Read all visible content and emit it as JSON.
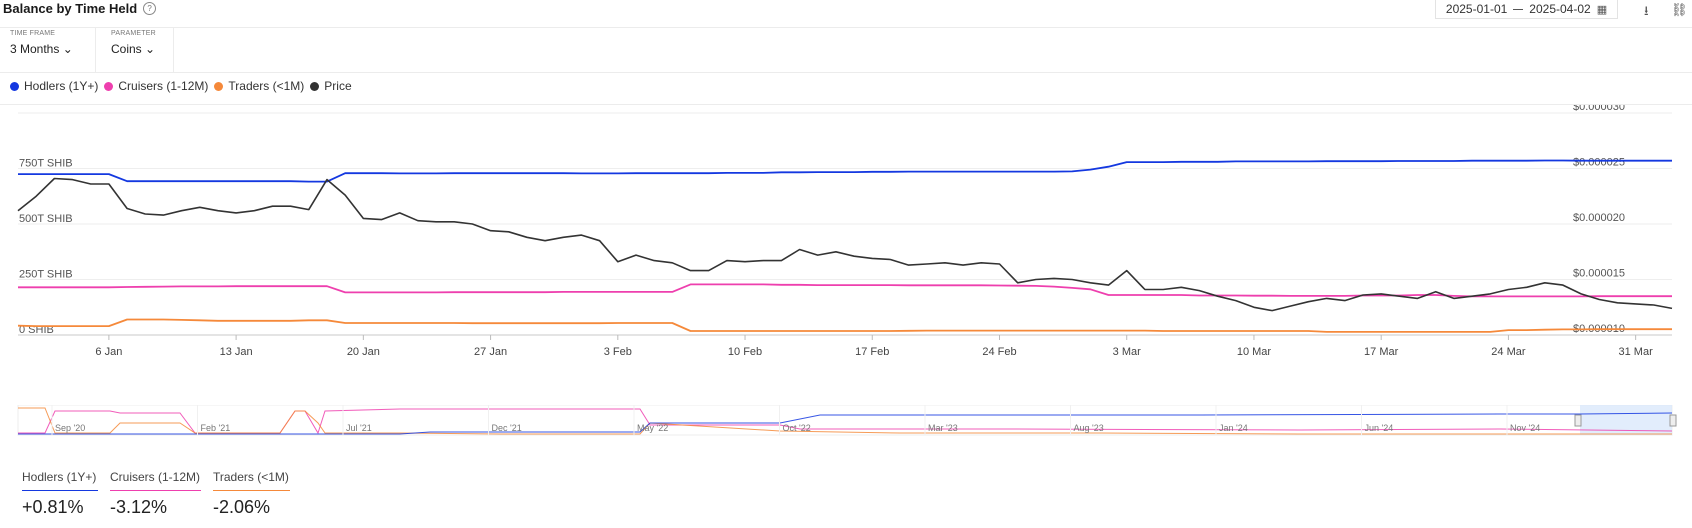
{
  "header": {
    "title": "Balance by Time Held",
    "date_from": "2025-01-01",
    "date_to": "2025-04-02"
  },
  "controls": {
    "timeframe": {
      "label": "TIME FRAME",
      "value": "3 Months"
    },
    "parameter": {
      "label": "PARAMETER",
      "value": "Coins"
    }
  },
  "colors": {
    "hodlers": "#1438e0",
    "cruisers": "#ee3fae",
    "traders": "#f5893a",
    "price": "#333333"
  },
  "chart_data": {
    "type": "line",
    "title": "Balance by Time Held",
    "x": [
      "2025-01-01",
      "2025-01-02",
      "2025-01-03",
      "2025-01-04",
      "2025-01-05",
      "2025-01-06",
      "2025-01-07",
      "2025-01-08",
      "2025-01-09",
      "2025-01-10",
      "2025-01-11",
      "2025-01-12",
      "2025-01-13",
      "2025-01-14",
      "2025-01-15",
      "2025-01-16",
      "2025-01-17",
      "2025-01-18",
      "2025-01-19",
      "2025-01-20",
      "2025-01-21",
      "2025-01-22",
      "2025-01-23",
      "2025-01-24",
      "2025-01-25",
      "2025-01-26",
      "2025-01-27",
      "2025-01-28",
      "2025-01-29",
      "2025-01-30",
      "2025-01-31",
      "2025-02-01",
      "2025-02-02",
      "2025-02-03",
      "2025-02-04",
      "2025-02-05",
      "2025-02-06",
      "2025-02-07",
      "2025-02-08",
      "2025-02-09",
      "2025-02-10",
      "2025-02-11",
      "2025-02-12",
      "2025-02-13",
      "2025-02-14",
      "2025-02-15",
      "2025-02-16",
      "2025-02-17",
      "2025-02-18",
      "2025-02-19",
      "2025-02-20",
      "2025-02-21",
      "2025-02-22",
      "2025-02-23",
      "2025-02-24",
      "2025-02-25",
      "2025-02-26",
      "2025-02-27",
      "2025-02-28",
      "2025-03-01",
      "2025-03-02",
      "2025-03-03",
      "2025-03-04",
      "2025-03-05",
      "2025-03-06",
      "2025-03-07",
      "2025-03-08",
      "2025-03-09",
      "2025-03-10",
      "2025-03-11",
      "2025-03-12",
      "2025-03-13",
      "2025-03-14",
      "2025-03-15",
      "2025-03-16",
      "2025-03-17",
      "2025-03-18",
      "2025-03-19",
      "2025-03-20",
      "2025-03-21",
      "2025-03-22",
      "2025-03-23",
      "2025-03-24",
      "2025-03-25",
      "2025-03-26",
      "2025-03-27",
      "2025-03-28",
      "2025-03-29",
      "2025-03-30",
      "2025-03-31",
      "2025-04-01",
      "2025-04-02"
    ],
    "x_ticks": [
      "6 Jan",
      "13 Jan",
      "20 Jan",
      "27 Jan",
      "3 Feb",
      "10 Feb",
      "17 Feb",
      "24 Feb",
      "3 Mar",
      "10 Mar",
      "17 Mar",
      "24 Mar",
      "31 Mar"
    ],
    "y_left": {
      "ticks": [
        "0 SHIB",
        "250T SHIB",
        "500T SHIB",
        "750T SHIB"
      ],
      "unit": "SHIB",
      "min": 0,
      "max": 1000,
      "scale": "T"
    },
    "y_right": {
      "ticks": [
        "$0.000010",
        "$0.000015",
        "$0.000020",
        "$0.000025",
        "$0.000030"
      ],
      "min": 1e-05,
      "max": 3e-05
    },
    "series": [
      {
        "name": "Hodlers (1Y+)",
        "axis": "left",
        "values": [
          725,
          725,
          725,
          725,
          725,
          725,
          693,
          693,
          693,
          693,
          693,
          693,
          693,
          693,
          693,
          693,
          691,
          691,
          729,
          729,
          729,
          728,
          728,
          728,
          729,
          729,
          729,
          729,
          729,
          729,
          729,
          728,
          728,
          728,
          729,
          729,
          729,
          729,
          729,
          730,
          730,
          730,
          733,
          733,
          734,
          734,
          734,
          735,
          735,
          736,
          736,
          736,
          736,
          736,
          736,
          736,
          736,
          736,
          737,
          745,
          758,
          779,
          779,
          779,
          780,
          780,
          780,
          782,
          782,
          782,
          782,
          782,
          783,
          783,
          783,
          783,
          784,
          784,
          784,
          784,
          785,
          785,
          785,
          785,
          786,
          786,
          785,
          785,
          785,
          785,
          785,
          785
        ]
      },
      {
        "name": "Cruisers (1-12M)",
        "axis": "left",
        "values": [
          215,
          215,
          215,
          215,
          215,
          215,
          216,
          217,
          218,
          219,
          219,
          219,
          220,
          220,
          220,
          220,
          220,
          220,
          192,
          192,
          192,
          192,
          192,
          192,
          193,
          193,
          193,
          193,
          193,
          193,
          194,
          194,
          194,
          194,
          194,
          194,
          194,
          228,
          228,
          228,
          228,
          228,
          226,
          226,
          225,
          225,
          225,
          225,
          225,
          224,
          224,
          224,
          224,
          224,
          223,
          222,
          221,
          218,
          212,
          206,
          180,
          180,
          180,
          180,
          180,
          178,
          178,
          178,
          177,
          177,
          176,
          176,
          176,
          176,
          178,
          178,
          178,
          180,
          180,
          176,
          174,
          174,
          174,
          174,
          174,
          174,
          174,
          175,
          175,
          175,
          175,
          175
        ]
      },
      {
        "name": "Traders (<1M)",
        "axis": "left",
        "values": [
          42,
          40,
          40,
          40,
          40,
          40,
          70,
          70,
          70,
          68,
          66,
          64,
          64,
          64,
          64,
          64,
          66,
          66,
          54,
          54,
          54,
          54,
          54,
          54,
          54,
          53,
          53,
          53,
          53,
          53,
          53,
          53,
          53,
          54,
          54,
          54,
          54,
          18,
          18,
          18,
          18,
          18,
          18,
          18,
          18,
          18,
          18,
          18,
          18,
          19,
          20,
          20,
          20,
          20,
          20,
          20,
          20,
          20,
          20,
          20,
          20,
          20,
          20,
          18,
          18,
          18,
          18,
          18,
          18,
          18,
          18,
          18,
          14,
          14,
          14,
          14,
          14,
          14,
          14,
          14,
          14,
          14,
          22,
          22,
          24,
          25,
          25,
          26,
          26,
          26,
          26,
          26
        ]
      },
      {
        "name": "Price",
        "axis": "right",
        "values": [
          2.12e-05,
          2.25e-05,
          2.41e-05,
          2.4e-05,
          2.36e-05,
          2.36e-05,
          2.14e-05,
          2.09e-05,
          2.08e-05,
          2.12e-05,
          2.15e-05,
          2.12e-05,
          2.1e-05,
          2.12e-05,
          2.16e-05,
          2.16e-05,
          2.13e-05,
          2.4e-05,
          2.26e-05,
          2.05e-05,
          2.04e-05,
          2.1e-05,
          2.03e-05,
          2.02e-05,
          2.02e-05,
          2e-05,
          1.94e-05,
          1.93e-05,
          1.88e-05,
          1.85e-05,
          1.88e-05,
          1.9e-05,
          1.85e-05,
          1.66e-05,
          1.72e-05,
          1.67e-05,
          1.65e-05,
          1.58e-05,
          1.58e-05,
          1.67e-05,
          1.66e-05,
          1.67e-05,
          1.67e-05,
          1.77e-05,
          1.72e-05,
          1.75e-05,
          1.71e-05,
          1.69e-05,
          1.68e-05,
          1.63e-05,
          1.64e-05,
          1.65e-05,
          1.63e-05,
          1.65e-05,
          1.64e-05,
          1.47e-05,
          1.5e-05,
          1.51e-05,
          1.5e-05,
          1.47e-05,
          1.45e-05,
          1.58e-05,
          1.41e-05,
          1.41e-05,
          1.43e-05,
          1.4e-05,
          1.35e-05,
          1.31e-05,
          1.25e-05,
          1.22e-05,
          1.26e-05,
          1.3e-05,
          1.33e-05,
          1.31e-05,
          1.36e-05,
          1.37e-05,
          1.35e-05,
          1.33e-05,
          1.39e-05,
          1.33e-05,
          1.35e-05,
          1.37e-05,
          1.41e-05,
          1.43e-05,
          1.47e-05,
          1.45e-05,
          1.37e-05,
          1.32e-05,
          1.29e-05,
          1.28e-05,
          1.27e-05,
          1.24e-05
        ]
      }
    ],
    "navigator": {
      "labels": [
        "Sep '20",
        "Feb '21",
        "Jul '21",
        "Dec '21",
        "May '22",
        "Oct '22",
        "Mar '23",
        "Aug '23",
        "Jan '24",
        "Jun '24",
        "Nov '24"
      ]
    },
    "legend_position": "top-left",
    "grid": true
  },
  "stats": [
    {
      "label": "Hodlers (1Y+)",
      "value": "+0.81%"
    },
    {
      "label": "Cruisers (1-12M)",
      "value": "-3.12%"
    },
    {
      "label": "Traders (<1M)",
      "value": "-2.06%"
    }
  ]
}
